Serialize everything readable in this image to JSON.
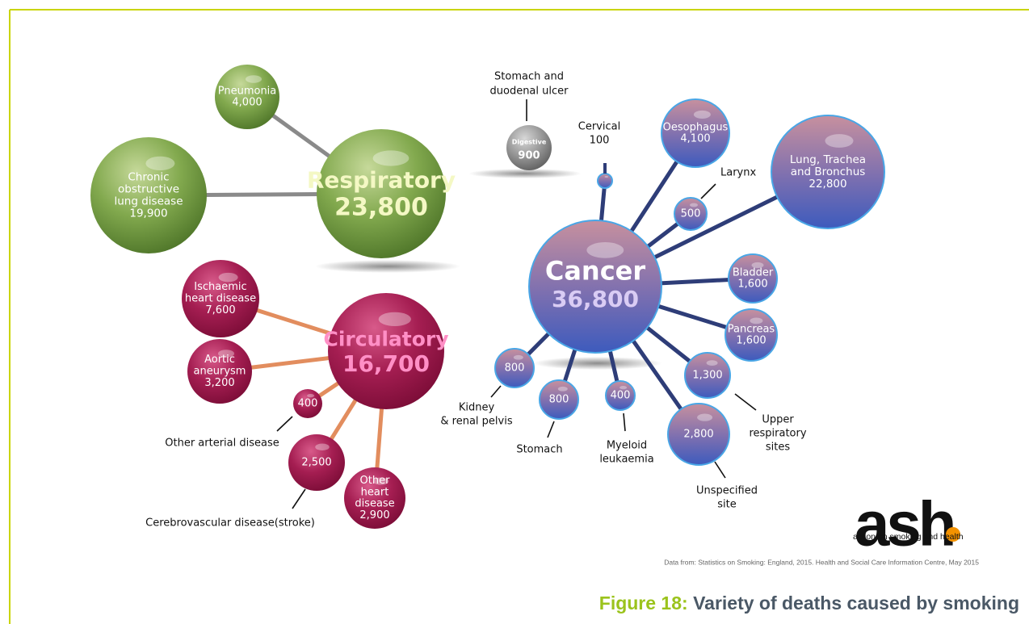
{
  "respiratory": {
    "label": "Respiratory",
    "value": "23,800",
    "children": [
      {
        "label": [
          "Pneumonia"
        ],
        "value": "4,000"
      },
      {
        "label": [
          "Chronic",
          "obstructive",
          "lung disease"
        ],
        "value": "19,900"
      }
    ]
  },
  "digestive": {
    "label": "Digestive",
    "value": "900",
    "caption": [
      "Stomach and",
      "duodenal ulcer"
    ]
  },
  "cancer": {
    "label": "Cancer",
    "value": "36,800",
    "children": [
      {
        "label": [
          "Cervical"
        ],
        "value": "100"
      },
      {
        "label": [
          "Oesophagus"
        ],
        "value": "4,100"
      },
      {
        "label": [
          "Larynx"
        ],
        "value": "500"
      },
      {
        "label": [
          "Lung, Trachea",
          "and Bronchus"
        ],
        "value": "22,800"
      },
      {
        "label": [
          "Bladder"
        ],
        "value": "1,600"
      },
      {
        "label": [
          "Pancreas"
        ],
        "value": "1,600"
      },
      {
        "label": [
          "Upper",
          "respiratory",
          "sites"
        ],
        "value": "1,300"
      },
      {
        "label": [
          "Unspecified",
          "site"
        ],
        "value": "2,800"
      },
      {
        "label": [
          "Myeloid",
          "leukaemia"
        ],
        "value": "400"
      },
      {
        "label": [
          "Stomach"
        ],
        "value": "800"
      },
      {
        "label": [
          "Kidney",
          "& renal pelvis"
        ],
        "value": "800"
      }
    ]
  },
  "circulatory": {
    "label": "Circulatory",
    "value": "16,700",
    "children": [
      {
        "label": [
          "Ischaemic",
          "heart disease"
        ],
        "value": "7,600"
      },
      {
        "label": [
          "Aortic",
          "aneurysm"
        ],
        "value": "3,200"
      },
      {
        "label": [
          "Other arterial disease"
        ],
        "value": "400"
      },
      {
        "label": [
          "Cerebrovascular disease(stroke)"
        ],
        "value": "2,500"
      },
      {
        "label": [
          "Other",
          "heart",
          "disease"
        ],
        "value": "2,900"
      }
    ]
  },
  "logo": {
    "mark": "ash",
    "tagline": "action on smoking and health"
  },
  "source": "Data from: Statistics on Smoking: England, 2015. Health and Social Care Information Centre, May 2015",
  "figure": {
    "number": "Figure 18:",
    "caption": "Variety of deaths caused by smoking"
  }
}
